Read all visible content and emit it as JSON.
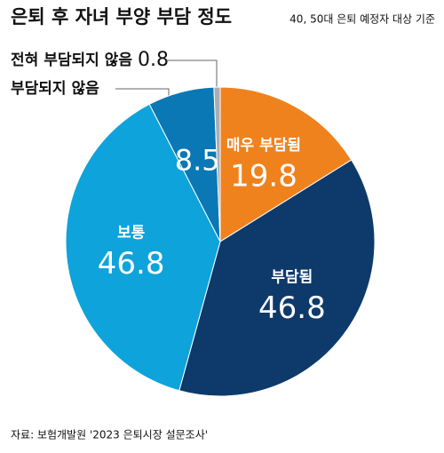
{
  "chart_data": {
    "type": "pie",
    "title": "은퇴 후 자녀 부양 부담 정도",
    "subtitle": "40, 50대 은퇴 예정자 대상 기준",
    "source": "자료: 보험개발원 '2023 은퇴시장 설문조사'",
    "categories": [
      "매우 부담됨",
      "부담됨",
      "보통",
      "부담되지 않음",
      "전혀 부담되지 않음"
    ],
    "values": [
      19.8,
      46.8,
      46.8,
      8.5,
      0.8
    ],
    "colors": [
      "#f0821e",
      "#0d3a6b",
      "#0ea3da",
      "#0a78b4",
      "#a9aeb5"
    ]
  }
}
